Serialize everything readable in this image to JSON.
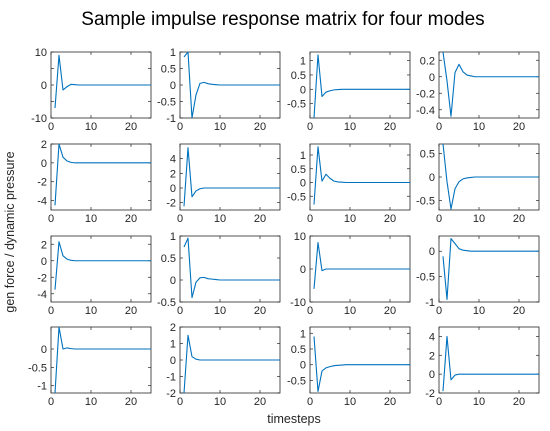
{
  "chart_data": {
    "type": "line",
    "title": "Sample impulse response matrix for four modes",
    "xlabel": "timesteps",
    "ylabel": "gen force / dynamic pressure",
    "grid": false,
    "x": [
      1,
      2,
      3,
      4,
      5,
      6,
      7,
      8,
      9,
      10,
      11,
      12,
      13,
      14,
      15,
      16,
      17,
      18,
      19,
      20,
      21,
      22,
      23,
      24,
      25
    ],
    "panels": [
      {
        "row": 1,
        "col": 1,
        "xlim": [
          0,
          25
        ],
        "ylim": [
          -10,
          10
        ],
        "xticks": [
          0,
          10,
          20
        ],
        "yticks": [
          -10,
          -5,
          0,
          5,
          10
        ],
        "ytick_labels": [
          "-10",
          "",
          "0",
          "",
          "10"
        ],
        "values": [
          -7,
          9,
          -1.5,
          -0.5,
          0.2,
          0.1,
          0,
          0,
          0,
          0,
          0,
          0,
          0,
          0,
          0,
          0,
          0,
          0,
          0,
          0,
          0,
          0,
          0,
          0,
          0
        ]
      },
      {
        "row": 1,
        "col": 2,
        "xlim": [
          0,
          25
        ],
        "ylim": [
          -1,
          1
        ],
        "xticks": [
          0,
          10,
          20
        ],
        "yticks": [
          -1,
          -0.5,
          0,
          0.5,
          1
        ],
        "ytick_labels": [
          "-1",
          "-0.5",
          "0",
          "0.5",
          "1"
        ],
        "values": [
          0.85,
          1.0,
          -1.0,
          -0.3,
          0.05,
          0.08,
          0.04,
          0.02,
          0.01,
          0,
          0,
          0,
          0,
          0,
          0,
          0,
          0,
          0,
          0,
          0,
          0,
          0,
          0,
          0,
          0
        ]
      },
      {
        "row": 1,
        "col": 3,
        "xlim": [
          0,
          25
        ],
        "ylim": [
          -1,
          1.3
        ],
        "xticks": [
          0,
          10,
          20
        ],
        "yticks": [
          -0.5,
          0,
          0.5,
          1
        ],
        "ytick_labels": [
          "-0.5",
          "0",
          "0.5",
          "1"
        ],
        "values": [
          -1.0,
          1.2,
          -0.25,
          -0.1,
          -0.05,
          -0.02,
          -0.01,
          0,
          0,
          0,
          0,
          0,
          0,
          0,
          0,
          0,
          0,
          0,
          0,
          0,
          0,
          0,
          0,
          0,
          0
        ]
      },
      {
        "row": 1,
        "col": 4,
        "xlim": [
          0,
          25
        ],
        "ylim": [
          -0.5,
          0.3
        ],
        "xticks": [
          0,
          10,
          20
        ],
        "yticks": [
          -0.4,
          -0.2,
          0,
          0.2
        ],
        "ytick_labels": [
          "-0.4",
          "-0.2",
          "0",
          "0.2"
        ],
        "values": [
          0.3,
          -0.05,
          -0.48,
          0.05,
          0.15,
          0.06,
          0.02,
          0.01,
          0,
          0,
          0,
          0,
          0,
          0,
          0,
          0,
          0,
          0,
          0,
          0,
          0,
          0,
          0,
          0,
          0
        ]
      },
      {
        "row": 2,
        "col": 1,
        "xlim": [
          0,
          25
        ],
        "ylim": [
          -5,
          2
        ],
        "xticks": [
          0,
          10,
          20
        ],
        "yticks": [
          -4,
          -2,
          0,
          2
        ],
        "ytick_labels": [
          "-4",
          "-2",
          "0",
          "2"
        ],
        "values": [
          -4.5,
          2.0,
          0.6,
          0.2,
          0.05,
          0,
          0,
          0,
          0,
          0,
          0,
          0,
          0,
          0,
          0,
          0,
          0,
          0,
          0,
          0,
          0,
          0,
          0,
          0,
          0
        ]
      },
      {
        "row": 2,
        "col": 2,
        "xlim": [
          0,
          25
        ],
        "ylim": [
          -3,
          6
        ],
        "xticks": [
          0,
          10,
          20
        ],
        "yticks": [
          -2,
          0,
          2,
          4
        ],
        "ytick_labels": [
          "-2",
          "0",
          "2",
          "4"
        ],
        "values": [
          -2.5,
          5.5,
          -1.2,
          -0.4,
          -0.1,
          0,
          0,
          0,
          0,
          0,
          0,
          0,
          0,
          0,
          0,
          0,
          0,
          0,
          0,
          0,
          0,
          0,
          0,
          0,
          0
        ]
      },
      {
        "row": 2,
        "col": 3,
        "xlim": [
          0,
          25
        ],
        "ylim": [
          -1,
          1.4
        ],
        "xticks": [
          0,
          10,
          20
        ],
        "yticks": [
          -0.5,
          0,
          0.5,
          1
        ],
        "ytick_labels": [
          "-0.5",
          "0",
          "0.5",
          "1"
        ],
        "values": [
          -0.8,
          1.3,
          0.05,
          0.3,
          0.15,
          0.05,
          0.02,
          0.01,
          0,
          0,
          0,
          0,
          0,
          0,
          0,
          0,
          0,
          0,
          0,
          0,
          0,
          0,
          0,
          0,
          0
        ]
      },
      {
        "row": 2,
        "col": 4,
        "xlim": [
          0,
          25
        ],
        "ylim": [
          -0.7,
          0.7
        ],
        "xticks": [
          0,
          10,
          20
        ],
        "yticks": [
          -0.5,
          0,
          0.5
        ],
        "ytick_labels": [
          "-0.5",
          "0",
          "0.5"
        ],
        "values": [
          0.7,
          -0.1,
          -0.68,
          -0.25,
          -0.1,
          -0.04,
          -0.02,
          -0.01,
          0,
          0,
          0,
          0,
          0,
          0,
          0,
          0,
          0,
          0,
          0,
          0,
          0,
          0,
          0,
          0,
          0
        ]
      },
      {
        "row": 3,
        "col": 1,
        "xlim": [
          0,
          25
        ],
        "ylim": [
          -5,
          3
        ],
        "xticks": [
          0,
          10,
          20
        ],
        "yticks": [
          -4,
          -2,
          0,
          2
        ],
        "ytick_labels": [
          "-4",
          "-2",
          "0",
          "2"
        ],
        "values": [
          -3.5,
          2.3,
          0.6,
          0.2,
          0.05,
          0,
          0,
          0,
          0,
          0,
          0,
          0,
          0,
          0,
          0,
          0,
          0,
          0,
          0,
          0,
          0,
          0,
          0,
          0,
          0
        ]
      },
      {
        "row": 3,
        "col": 2,
        "xlim": [
          0,
          25
        ],
        "ylim": [
          -0.5,
          1
        ],
        "xticks": [
          0,
          10,
          20
        ],
        "yticks": [
          -0.5,
          0,
          0.5,
          1
        ],
        "ytick_labels": [
          "-0.5",
          "0",
          "0.5",
          "1"
        ],
        "values": [
          0.75,
          0.95,
          -0.4,
          -0.05,
          0.05,
          0.06,
          0.03,
          0.02,
          0.01,
          0,
          0,
          0,
          0,
          0,
          0,
          0,
          0,
          0,
          0,
          0,
          0,
          0,
          0,
          0,
          0
        ]
      },
      {
        "row": 3,
        "col": 3,
        "xlim": [
          0,
          25
        ],
        "ylim": [
          -10,
          10
        ],
        "xticks": [
          0,
          10,
          20
        ],
        "yticks": [
          -10,
          0,
          10
        ],
        "ytick_labels": [
          "-10",
          "0",
          "10"
        ],
        "values": [
          -6,
          8,
          -0.5,
          0,
          0,
          0,
          0,
          0,
          0,
          0,
          0,
          0,
          0,
          0,
          0,
          0,
          0,
          0,
          0,
          0,
          0,
          0,
          0,
          0,
          0
        ]
      },
      {
        "row": 3,
        "col": 4,
        "xlim": [
          0,
          25
        ],
        "ylim": [
          -1,
          0.3
        ],
        "xticks": [
          0,
          10,
          20
        ],
        "yticks": [
          -1,
          -0.5,
          0
        ],
        "ytick_labels": [
          "-1",
          "-0.5",
          "0"
        ],
        "values": [
          -0.1,
          -0.95,
          0.25,
          0.15,
          0.05,
          0.02,
          0.01,
          0,
          0,
          0,
          0,
          0,
          0,
          0,
          0,
          0,
          0,
          0,
          0,
          0,
          0,
          0,
          0,
          0,
          0
        ]
      },
      {
        "row": 4,
        "col": 1,
        "xlim": [
          0,
          25
        ],
        "ylim": [
          -1.2,
          0.6
        ],
        "xticks": [
          0,
          10,
          20
        ],
        "yticks": [
          -1,
          -0.5,
          0
        ],
        "ytick_labels": [
          "-1",
          "-0.5",
          "0"
        ],
        "values": [
          -1.2,
          0.6,
          0.0,
          0.03,
          0.01,
          0,
          0,
          0,
          0,
          0,
          0,
          0,
          0,
          0,
          0,
          0,
          0,
          0,
          0,
          0,
          0,
          0,
          0,
          0,
          0
        ]
      },
      {
        "row": 4,
        "col": 2,
        "xlim": [
          0,
          25
        ],
        "ylim": [
          -2,
          2
        ],
        "xticks": [
          0,
          10,
          20
        ],
        "yticks": [
          -2,
          -1,
          0,
          1,
          2
        ],
        "ytick_labels": [
          "-2",
          "-1",
          "0",
          "1",
          "2"
        ],
        "values": [
          -2,
          1.5,
          0.2,
          0.05,
          0,
          0,
          0,
          0,
          0,
          0,
          0,
          0,
          0,
          0,
          0,
          0,
          0,
          0,
          0,
          0,
          0,
          0,
          0,
          0,
          0
        ]
      },
      {
        "row": 4,
        "col": 3,
        "xlim": [
          0,
          25
        ],
        "ylim": [
          -0.9,
          1.2
        ],
        "xticks": [
          0,
          10,
          20
        ],
        "yticks": [
          -0.5,
          0,
          0.5,
          1
        ],
        "ytick_labels": [
          "-0.5",
          "0",
          "0.5",
          "1"
        ],
        "values": [
          0.9,
          -0.85,
          -0.2,
          -0.1,
          -0.06,
          -0.03,
          -0.02,
          -0.01,
          0,
          0,
          0,
          0,
          0,
          0,
          0,
          0,
          0,
          0,
          0,
          0,
          0,
          0,
          0,
          0,
          0
        ]
      },
      {
        "row": 4,
        "col": 4,
        "xlim": [
          0,
          25
        ],
        "ylim": [
          -2,
          5
        ],
        "xticks": [
          0,
          10,
          20
        ],
        "yticks": [
          -2,
          0,
          2,
          4
        ],
        "ytick_labels": [
          "-2",
          "0",
          "2",
          "4"
        ],
        "values": [
          -1.8,
          4.0,
          -0.6,
          -0.1,
          0,
          0,
          0,
          0,
          0,
          0,
          0,
          0,
          0,
          0,
          0,
          0,
          0,
          0,
          0,
          0,
          0,
          0,
          0,
          0,
          0
        ]
      }
    ]
  }
}
